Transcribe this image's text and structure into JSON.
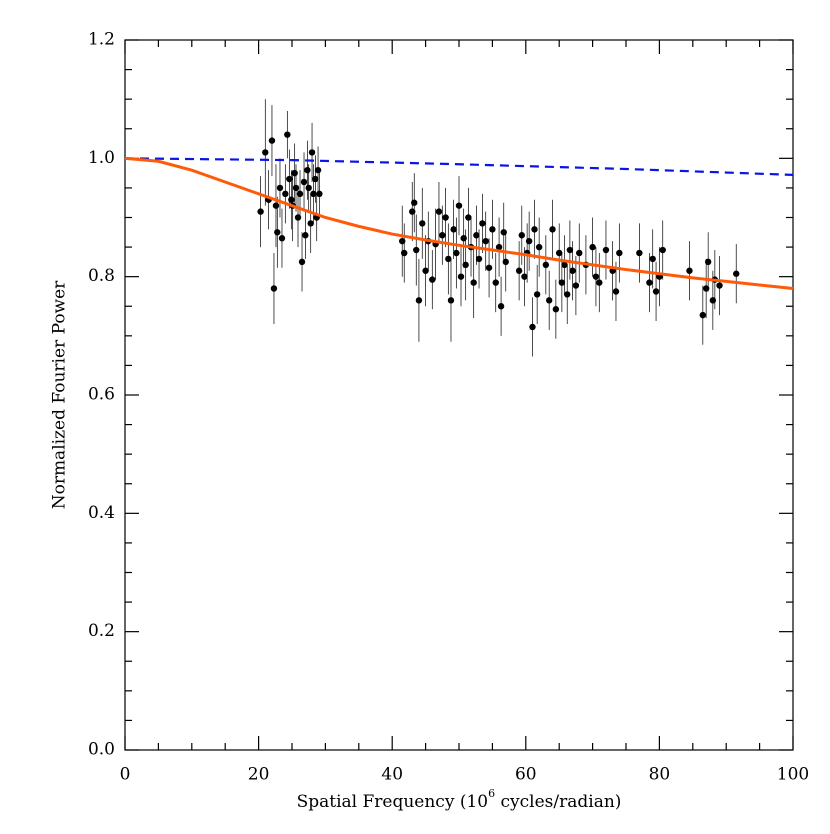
{
  "chart_data": {
    "type": "scatter",
    "x_label": [
      "Spatial Frequency (10",
      "6",
      " cycles/radian)"
    ],
    "y_label": "Normalized Fourier Power",
    "xlim": [
      0,
      100
    ],
    "xticks": [
      0,
      20,
      40,
      60,
      80,
      100
    ],
    "ylim": [
      0,
      1.2
    ],
    "yticks": [
      {
        "value": 0,
        "label": "0.0"
      },
      {
        "value": 0.2,
        "label": "0.2"
      },
      {
        "value": 0.4,
        "label": "0.4"
      },
      {
        "value": 0.6,
        "label": "0.6"
      },
      {
        "value": 0.8,
        "label": "0.8"
      },
      {
        "value": 1,
        "label": "1.0"
      },
      {
        "value": 1.2,
        "label": "1.2"
      }
    ],
    "series": [
      {
        "draw": "points",
        "color": "#000000",
        "x": [
          20.3,
          21,
          21.5,
          22,
          22.3,
          22.6,
          22.8,
          23.2,
          23.5,
          24,
          24.3,
          24.6,
          24.9,
          25.1,
          25.4,
          25.6,
          25.9,
          26.2,
          26.5,
          26.8,
          27,
          27.3,
          27.5,
          27.8,
          28,
          28.2,
          28.5,
          28.7,
          28.9,
          29.1,
          41.5,
          41.8,
          43,
          43.3,
          43.6,
          44,
          44.5,
          45,
          45.4,
          46,
          46.5,
          47,
          47.5,
          48,
          48.4,
          48.8,
          49.2,
          49.6,
          50,
          50.3,
          50.7,
          51,
          51.4,
          51.8,
          52.2,
          52.6,
          53,
          53.5,
          54,
          54.5,
          55,
          55.5,
          56,
          56.3,
          56.7,
          57,
          59,
          59.4,
          59.8,
          60.2,
          60.5,
          61,
          61.3,
          61.7,
          62,
          63,
          63.5,
          64,
          64.5,
          65,
          65.4,
          65.8,
          66.2,
          66.6,
          67,
          67.5,
          68,
          69,
          70,
          70.5,
          71,
          72,
          73,
          73.5,
          74,
          77,
          78.5,
          79,
          80,
          79.5,
          80.5,
          84.5,
          86.5,
          87,
          87.3,
          88,
          88.3,
          89,
          91.5
        ],
        "values": [
          0.91,
          1.01,
          0.93,
          1.03,
          0.78,
          0.92,
          0.875,
          0.95,
          0.865,
          0.94,
          1.04,
          0.965,
          0.93,
          0.92,
          0.975,
          0.95,
          0.9,
          0.94,
          0.825,
          0.96,
          0.87,
          0.98,
          0.95,
          0.89,
          1.01,
          0.94,
          0.965,
          0.9,
          0.98,
          0.94,
          0.86,
          0.84,
          0.91,
          0.925,
          0.845,
          0.76,
          0.89,
          0.81,
          0.86,
          0.795,
          0.855,
          0.91,
          0.87,
          0.9,
          0.83,
          0.76,
          0.88,
          0.84,
          0.92,
          0.8,
          0.865,
          0.82,
          0.9,
          0.85,
          0.79,
          0.87,
          0.83,
          0.89,
          0.86,
          0.815,
          0.88,
          0.79,
          0.85,
          0.75,
          0.875,
          0.825,
          0.81,
          0.87,
          0.8,
          0.84,
          0.86,
          0.715,
          0.88,
          0.77,
          0.85,
          0.82,
          0.76,
          0.88,
          0.745,
          0.84,
          0.79,
          0.82,
          0.77,
          0.845,
          0.81,
          0.785,
          0.84,
          0.82,
          0.85,
          0.8,
          0.79,
          0.845,
          0.81,
          0.775,
          0.84,
          0.84,
          0.79,
          0.83,
          0.8,
          0.775,
          0.845,
          0.81,
          0.735,
          0.78,
          0.825,
          0.76,
          0.795,
          0.785,
          0.805
        ],
        "errors": [
          0.06,
          0.09,
          0.05,
          0.06,
          0.06,
          0.07,
          0.06,
          0.05,
          0.05,
          0.05,
          0.04,
          0.05,
          0.05,
          0.06,
          0.05,
          0.04,
          0.05,
          0.04,
          0.05,
          0.05,
          0.04,
          0.05,
          0.04,
          0.05,
          0.05,
          0.05,
          0.04,
          0.04,
          0.04,
          0.04,
          0.06,
          0.05,
          0.05,
          0.05,
          0.06,
          0.07,
          0.06,
          0.06,
          0.05,
          0.05,
          0.06,
          0.05,
          0.05,
          0.05,
          0.06,
          0.07,
          0.05,
          0.06,
          0.05,
          0.05,
          0.05,
          0.06,
          0.05,
          0.05,
          0.06,
          0.05,
          0.05,
          0.05,
          0.05,
          0.05,
          0.05,
          0.05,
          0.05,
          0.05,
          0.05,
          0.05,
          0.05,
          0.05,
          0.05,
          0.05,
          0.05,
          0.05,
          0.05,
          0.05,
          0.05,
          0.05,
          0.05,
          0.05,
          0.05,
          0.05,
          0.05,
          0.05,
          0.05,
          0.05,
          0.05,
          0.05,
          0.05,
          0.05,
          0.05,
          0.05,
          0.05,
          0.05,
          0.05,
          0.05,
          0.05,
          0.05,
          0.05,
          0.05,
          0.05,
          0.05,
          0.05,
          0.05,
          0.05,
          0.05,
          0.05,
          0.05,
          0.05,
          0.05,
          0.05
        ]
      },
      {
        "draw": "line",
        "color": "#0a14e6",
        "dashed": true,
        "x": [
          0,
          25,
          50,
          75,
          100
        ],
        "values": [
          1.0,
          0.997,
          0.99,
          0.982,
          0.972
        ]
      },
      {
        "draw": "line",
        "color": "#ff5a0a",
        "dashed": false,
        "x": [
          0,
          5,
          10,
          15,
          20,
          25,
          30,
          35,
          40,
          45,
          50,
          55,
          60,
          65,
          70,
          75,
          80,
          85,
          90,
          95,
          100
        ],
        "values": [
          1.0,
          0.995,
          0.98,
          0.96,
          0.94,
          0.92,
          0.9,
          0.885,
          0.872,
          0.862,
          0.853,
          0.845,
          0.837,
          0.828,
          0.82,
          0.812,
          0.805,
          0.798,
          0.792,
          0.786,
          0.78
        ]
      }
    ]
  }
}
